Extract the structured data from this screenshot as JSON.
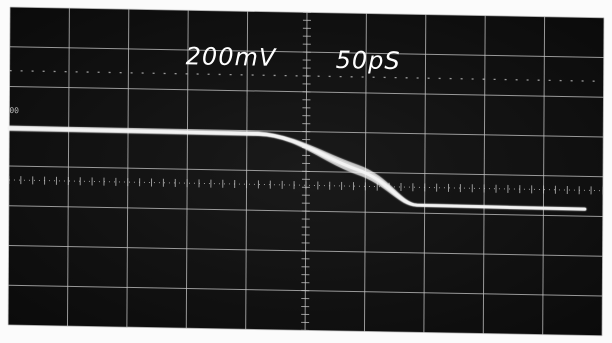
{
  "screen": {
    "vertical_scale": "200mV",
    "timebase": "50pS",
    "left_edge_marker": "00"
  },
  "trace": {
    "shape": "falling-step",
    "high_level_divisions_from_center": 2.0,
    "low_level_divisions_from_center": 0.8,
    "transition_start_division_x": 5.0,
    "transition_end_division_x": 6.7
  },
  "colors": {
    "screen_background": "#121212",
    "graticule": "#c7c7c7",
    "trace": "#f3f3f3",
    "label_text": "#ffffff",
    "photo_border": "#fbfbfb"
  },
  "graticule": {
    "horizontal_divisions": 10,
    "vertical_divisions": 8
  }
}
